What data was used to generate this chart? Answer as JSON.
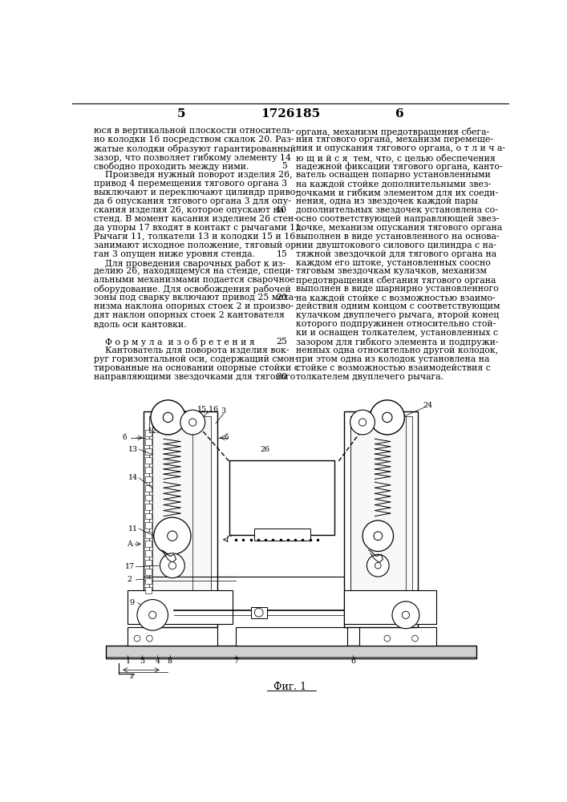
{
  "page_left_num": "5",
  "patent_num": "1726185",
  "page_right_num": "6",
  "left_column_text": [
    "юся в вертикальной плоскости относитель-",
    "но колодки 16 посредством скалок 20. Раз-",
    "жатые колодки образуют гарантированный",
    "зазор, что позволяет гибкому элементу 14",
    "свободно проходить между ними.",
    "    Произведя нужный поворот изделия 26,",
    "привод 4 перемещения тягового органа 3",
    "выключают и переключают цилиндр приво-",
    "да 6 опускания тягового органа 3 для опу-",
    "скания изделия 26, которое опускают на",
    "стенд. В момент касания изделием 26 стен-",
    "да упоры 17 входят в контакт с рычагами 11.",
    "Рычаги 11, толкатели 13 и колодки 15 и 16",
    "занимают исходное положение, тяговый ор-",
    "ган 3 опущен ниже уровня стенда.",
    "    Для проведения сварочных работ к из-",
    "делию 26, находящемуся на стенде, специ-",
    "альными механизмами подается сварочное",
    "оборудование. Для освобождения рабочей",
    "зоны под сварку включают привод 25 меха-",
    "низма наклона опорных стоек 2 и произво-",
    "дят наклон опорных стоек 2 кантователя",
    "вдоль оси кантовки.",
    "",
    "    Ф о р м у л а  и з о б р е т е н и я",
    "    Кантователь для поворота изделия вок-",
    "руг горизонтальной оси, содержащий смон-",
    "тированные на основании опорные стойки с",
    "направляющими звездочками для тягового"
  ],
  "right_column_text": [
    "органа, механизм предотвращения сбега-",
    "ния тягового органа, механизм перемеще-",
    "ния и опускания тягового органа, о т л и ч а-",
    "ю щ и й с я  тем, что, с целью обеспечения",
    "надежной фиксации тягового органа, канто-",
    "ватель оснащен попарно установленными",
    "на каждой стойке дополнительными звез-",
    "дочками и гибким элементом для их соеди-",
    "нения, одна из звездочек каждой пары",
    "дополнительных звездочек установлена со-",
    "осно соответствующей направляющей звез-",
    "дочке, механизм опускания тягового органа",
    "выполнен в виде установленного на основа-",
    "нии двуштокового силового цилиндра с на-",
    "тяжной звездочкой для тягового органа на",
    "каждом его штоке, установленных соосно",
    "тяговым звездочкам кулачков, механизм",
    "предотвращения сбегания тягового органа",
    "выполнен в виде шарнирно установленного",
    "на каждой стойке с возможностью взаимо-",
    "действия одним концом с соответствующим",
    "кулачком двуплечего рычага, второй конец",
    "которого подпружинен относительно стой-",
    "ки и оснащен толкателем, установленных с",
    "зазором для гибкого элемента и подпружи-",
    "ненных одна относительно другой колодок,",
    "при этом одна из колодок установлена на",
    "стойке с возможностью взаимодействия с",
    "толкателем двуплечего рычага."
  ],
  "figure_caption": "Фиг. 1",
  "bg_color": "#ffffff",
  "text_color": "#000000"
}
